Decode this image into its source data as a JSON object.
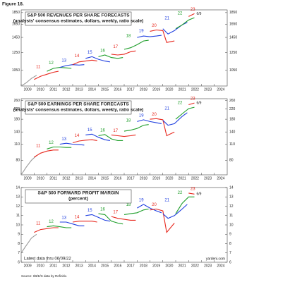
{
  "figure_label": "Figure 18.",
  "source": "Source: I/B/E/S data by Refinitiv.",
  "chart_data": [
    {
      "type": "line",
      "title": "S&P 500 REVENUES PER SHARE FORECASTS",
      "subtitle": "(analysts' consensus estimates, dollars, weekly, ratio scale)",
      "log_scale": true,
      "ylim": [
        900,
        1900
      ],
      "yticks": [
        1050,
        1250,
        1450,
        1650,
        1850
      ],
      "xlim": [
        2009,
        2025
      ],
      "xticks": [
        2009,
        2010,
        2011,
        2012,
        2013,
        2014,
        2015,
        2016,
        2017,
        2018,
        2019,
        2020,
        2021,
        2022,
        2023,
        2024
      ],
      "annotation": "6/9",
      "actual": {
        "color": "#999999",
        "x": [
          2009.0,
          2009.4,
          2009.8,
          2010.2
        ],
        "values": [
          900,
          930,
          970,
          1000
        ]
      },
      "series": [
        {
          "name": "11",
          "color": "#e8281e",
          "x": [
            2010.0,
            2010.5,
            2011.0,
            2011.5,
            2011.9
          ],
          "values": [
            960,
            990,
            1010,
            1030,
            1040
          ]
        },
        {
          "name": "12",
          "color": "#1e9e2a",
          "x": [
            2011.0,
            2011.5,
            2012.0,
            2012.5,
            2012.9
          ],
          "values": [
            1040,
            1070,
            1080,
            1075,
            1070
          ]
        },
        {
          "name": "13",
          "color": "#1f3fe0",
          "x": [
            2012.0,
            2012.5,
            2013.0,
            2013.5,
            2013.9
          ],
          "values": [
            1080,
            1100,
            1110,
            1105,
            1110
          ]
        },
        {
          "name": "14",
          "color": "#e8281e",
          "x": [
            2013.0,
            2013.5,
            2014.0,
            2014.5,
            2014.9
          ],
          "values": [
            1110,
            1140,
            1150,
            1160,
            1150
          ]
        },
        {
          "name": "15",
          "color": "#1f3fe0",
          "x": [
            2014.0,
            2014.5,
            2015.0,
            2015.5,
            2015.9
          ],
          "values": [
            1180,
            1200,
            1170,
            1150,
            1140
          ]
        },
        {
          "name": "16",
          "color": "#1e9e2a",
          "x": [
            2015.0,
            2015.5,
            2016.0,
            2016.5,
            2016.9
          ],
          "values": [
            1200,
            1220,
            1190,
            1180,
            1190
          ]
        },
        {
          "name": "17",
          "color": "#e8281e",
          "x": [
            2016.0,
            2016.5,
            2017.0,
            2017.5,
            2017.9
          ],
          "values": [
            1230,
            1220,
            1230,
            1260,
            1270
          ]
        },
        {
          "name": "18",
          "color": "#1e9e2a",
          "x": [
            2017.0,
            2017.5,
            2018.0,
            2018.5,
            2018.9
          ],
          "values": [
            1290,
            1310,
            1350,
            1400,
            1410
          ]
        },
        {
          "name": "19",
          "color": "#1f3fe0",
          "x": [
            2018.0,
            2018.5,
            2019.0,
            2019.5,
            2019.9
          ],
          "values": [
            1450,
            1470,
            1460,
            1470,
            1480
          ]
        },
        {
          "name": "20",
          "color": "#e8281e",
          "x": [
            2019.0,
            2019.5,
            2020.0,
            2020.3,
            2020.9
          ],
          "values": [
            1540,
            1560,
            1550,
            1380,
            1400
          ]
        },
        {
          "name": "21",
          "color": "#1f3fe0",
          "x": [
            2020.0,
            2020.4,
            2020.9,
            2021.5,
            2021.9
          ],
          "values": [
            1580,
            1500,
            1550,
            1640,
            1680
          ]
        },
        {
          "name": "22",
          "color": "#1e9e2a",
          "x": [
            2021.0,
            2021.5,
            2022.0,
            2022.45
          ],
          "values": [
            1580,
            1640,
            1720,
            1760
          ]
        },
        {
          "name": "23",
          "color": "#e8281e",
          "x": [
            2022.0,
            2022.45
          ],
          "values": [
            1780,
            1830
          ]
        }
      ]
    },
    {
      "type": "line",
      "title": "S&P 500 EARNINGS PER SHARE FORECASTS",
      "subtitle": "(analysts' consensus estimates, dollars, weekly, ratio scale)",
      "log_scale": true,
      "ylim": [
        60,
        270
      ],
      "yticks": [
        80,
        110,
        140,
        180,
        220,
        260
      ],
      "xlim": [
        2009,
        2025
      ],
      "xticks": [
        2009,
        2010,
        2011,
        2012,
        2013,
        2014,
        2015,
        2016,
        2017,
        2018,
        2019,
        2020,
        2021,
        2022,
        2023,
        2024
      ],
      "annotation": "6/9",
      "actual": {
        "color": "#999999",
        "x": [
          2009.0,
          2009.4,
          2009.8,
          2010.2
        ],
        "values": [
          60,
          70,
          80,
          88
        ]
      },
      "series": [
        {
          "name": "11",
          "color": "#e8281e",
          "x": [
            2010.0,
            2010.5,
            2011.0,
            2011.5,
            2011.9
          ],
          "values": [
            85,
            92,
            96,
            98,
            98
          ]
        },
        {
          "name": "12",
          "color": "#1e9e2a",
          "x": [
            2011.0,
            2011.5,
            2012.0,
            2012.5,
            2012.9
          ],
          "values": [
            100,
            104,
            104,
            103,
            103
          ]
        },
        {
          "name": "13",
          "color": "#1f3fe0",
          "x": [
            2012.0,
            2012.5,
            2013.0,
            2013.5,
            2013.9
          ],
          "values": [
            110,
            112,
            110,
            109,
            108
          ]
        },
        {
          "name": "14",
          "color": "#e8281e",
          "x": [
            2013.0,
            2013.5,
            2014.0,
            2014.5,
            2014.9
          ],
          "values": [
            113,
            117,
            119,
            120,
            118
          ]
        },
        {
          "name": "15",
          "color": "#1f3fe0",
          "x": [
            2014.0,
            2014.5,
            2015.0,
            2015.5,
            2015.9
          ],
          "values": [
            132,
            134,
            126,
            120,
            118
          ]
        },
        {
          "name": "16",
          "color": "#1e9e2a",
          "x": [
            2015.0,
            2015.5,
            2016.0,
            2016.5,
            2016.9
          ],
          "values": [
            130,
            133,
            122,
            118,
            118
          ]
        },
        {
          "name": "17",
          "color": "#e8281e",
          "x": [
            2016.0,
            2016.5,
            2017.0,
            2017.5,
            2017.9
          ],
          "values": [
            132,
            130,
            128,
            130,
            132
          ]
        },
        {
          "name": "18",
          "color": "#1e9e2a",
          "x": [
            2017.0,
            2017.5,
            2018.0,
            2018.5,
            2018.9
          ],
          "values": [
            142,
            145,
            150,
            160,
            162
          ]
        },
        {
          "name": "19",
          "color": "#1f3fe0",
          "x": [
            2018.0,
            2018.5,
            2019.0,
            2019.5,
            2019.9
          ],
          "values": [
            172,
            178,
            172,
            168,
            165
          ]
        },
        {
          "name": "20",
          "color": "#e8281e",
          "x": [
            2019.0,
            2019.5,
            2020.0,
            2020.3,
            2020.9
          ],
          "values": [
            180,
            182,
            178,
            130,
            140
          ]
        },
        {
          "name": "21",
          "color": "#1f3fe0",
          "x": [
            2020.0,
            2020.4,
            2020.9,
            2021.5,
            2021.9
          ],
          "values": [
            176,
            160,
            165,
            190,
            205
          ]
        },
        {
          "name": "22",
          "color": "#1e9e2a",
          "x": [
            2021.0,
            2021.5,
            2022.0,
            2022.45
          ],
          "values": [
            180,
            200,
            222,
            228
          ]
        },
        {
          "name": "23",
          "color": "#e8281e",
          "x": [
            2022.0,
            2022.45
          ],
          "values": [
            240,
            248
          ]
        }
      ]
    },
    {
      "type": "line",
      "title": "S&P 500 FORWARD PROFIT MARGIN",
      "subtitle": "(percent)",
      "log_scale": false,
      "ylim": [
        6,
        14
      ],
      "yticks": [
        6,
        7,
        8,
        9,
        10,
        11,
        12,
        13,
        14
      ],
      "xlim": [
        2009,
        2025
      ],
      "xticks": [
        2009,
        2010,
        2011,
        2012,
        2013,
        2014,
        2015,
        2016,
        2017,
        2018,
        2019,
        2020,
        2021,
        2022,
        2023,
        2024
      ],
      "annotation": "6/9",
      "note": "Latest data thru 06/09/22",
      "credit": "yardeni.com",
      "actual": {
        "color": "#999999",
        "x": [
          2009.0,
          2009.4,
          2009.8,
          2010.2
        ],
        "values": [
          7.0,
          7.8,
          8.6,
          9.0
        ]
      },
      "series": [
        {
          "name": "11",
          "color": "#e8281e",
          "x": [
            2010.0,
            2010.5,
            2011.0,
            2011.5,
            2011.9
          ],
          "values": [
            9.2,
            9.5,
            9.6,
            9.7,
            9.7
          ]
        },
        {
          "name": "12",
          "color": "#1e9e2a",
          "x": [
            2011.0,
            2011.5,
            2012.0,
            2012.5,
            2012.9
          ],
          "values": [
            9.8,
            9.9,
            9.8,
            9.7,
            9.7
          ]
        },
        {
          "name": "13",
          "color": "#1f3fe0",
          "x": [
            2012.0,
            2012.5,
            2013.0,
            2013.5,
            2013.9
          ],
          "values": [
            10.3,
            10.3,
            10.1,
            9.9,
            9.9
          ]
        },
        {
          "name": "14",
          "color": "#e8281e",
          "x": [
            2013.0,
            2013.5,
            2014.0,
            2014.5,
            2014.9
          ],
          "values": [
            10.3,
            10.4,
            10.4,
            10.4,
            10.3
          ]
        },
        {
          "name": "15",
          "color": "#1f3fe0",
          "x": [
            2014.0,
            2014.5,
            2015.0,
            2015.5,
            2015.9
          ],
          "values": [
            11.0,
            11.1,
            10.8,
            10.5,
            10.4
          ]
        },
        {
          "name": "16",
          "color": "#1e9e2a",
          "x": [
            2015.0,
            2015.5,
            2016.0,
            2016.5,
            2016.9
          ],
          "values": [
            11.2,
            11.1,
            10.4,
            10.2,
            10.1
          ]
        },
        {
          "name": "17",
          "color": "#e8281e",
          "x": [
            2016.0,
            2016.5,
            2017.0,
            2017.5,
            2017.9
          ],
          "values": [
            10.9,
            10.7,
            10.6,
            10.5,
            10.5
          ]
        },
        {
          "name": "18",
          "color": "#1e9e2a",
          "x": [
            2017.0,
            2017.5,
            2018.0,
            2018.5,
            2018.9
          ],
          "values": [
            11.1,
            11.2,
            11.3,
            11.6,
            11.7
          ]
        },
        {
          "name": "19",
          "color": "#1f3fe0",
          "x": [
            2018.0,
            2018.5,
            2019.0,
            2019.5,
            2019.9
          ],
          "values": [
            11.8,
            12.2,
            11.8,
            11.5,
            11.3
          ]
        },
        {
          "name": "20",
          "color": "#e8281e",
          "x": [
            2019.0,
            2019.5,
            2020.0,
            2020.3,
            2020.9
          ],
          "values": [
            11.6,
            11.7,
            11.5,
            9.2,
            10.2
          ]
        },
        {
          "name": "21",
          "color": "#1f3fe0",
          "x": [
            2020.0,
            2020.4,
            2020.9,
            2021.5,
            2021.9
          ],
          "values": [
            11.2,
            10.7,
            11.0,
            11.7,
            12.2
          ]
        },
        {
          "name": "22",
          "color": "#1e9e2a",
          "x": [
            2021.0,
            2021.5,
            2022.0,
            2022.45
          ],
          "values": [
            11.2,
            12.3,
            13.0,
            13.0
          ]
        },
        {
          "name": "23",
          "color": "#e8281e",
          "x": [
            2022.0,
            2022.45
          ],
          "values": [
            13.4,
            13.3
          ]
        }
      ]
    }
  ]
}
